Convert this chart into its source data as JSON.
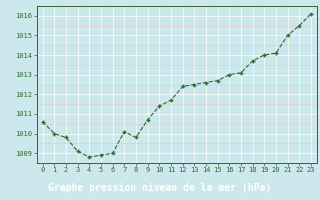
{
  "x": [
    0,
    1,
    2,
    3,
    4,
    5,
    6,
    7,
    8,
    9,
    10,
    11,
    12,
    13,
    14,
    15,
    16,
    17,
    18,
    19,
    20,
    21,
    22,
    23
  ],
  "y": [
    1010.6,
    1010.0,
    1009.8,
    1009.1,
    1008.8,
    1008.9,
    1009.0,
    1010.1,
    1009.8,
    1010.7,
    1011.4,
    1011.7,
    1012.4,
    1012.5,
    1012.6,
    1012.7,
    1013.0,
    1013.1,
    1013.7,
    1014.0,
    1014.1,
    1015.0,
    1015.5,
    1016.1
  ],
  "line_color": "#2d6a2d",
  "marker": "+",
  "plot_bg_color": "#cce8ec",
  "label_bg_color": "#2d6a2d",
  "grid_major_color": "#ffffff",
  "grid_minor_color": "#e0c8c8",
  "xlabel": "Graphe pression niveau de la mer (hPa)",
  "xlabel_color": "#ffffff",
  "ylim": [
    1008.5,
    1016.5
  ],
  "xlim": [
    -0.5,
    23.5
  ],
  "yticks": [
    1009,
    1010,
    1011,
    1012,
    1013,
    1014,
    1015,
    1016
  ],
  "xticks": [
    0,
    1,
    2,
    3,
    4,
    5,
    6,
    7,
    8,
    9,
    10,
    11,
    12,
    13,
    14,
    15,
    16,
    17,
    18,
    19,
    20,
    21,
    22,
    23
  ],
  "tick_label_fontsize": 5.0,
  "xlabel_fontsize": 7.0,
  "xlabel_fontweight": "bold",
  "ytick_color": "#2d6a2d",
  "xtick_color": "#2d6a2d"
}
